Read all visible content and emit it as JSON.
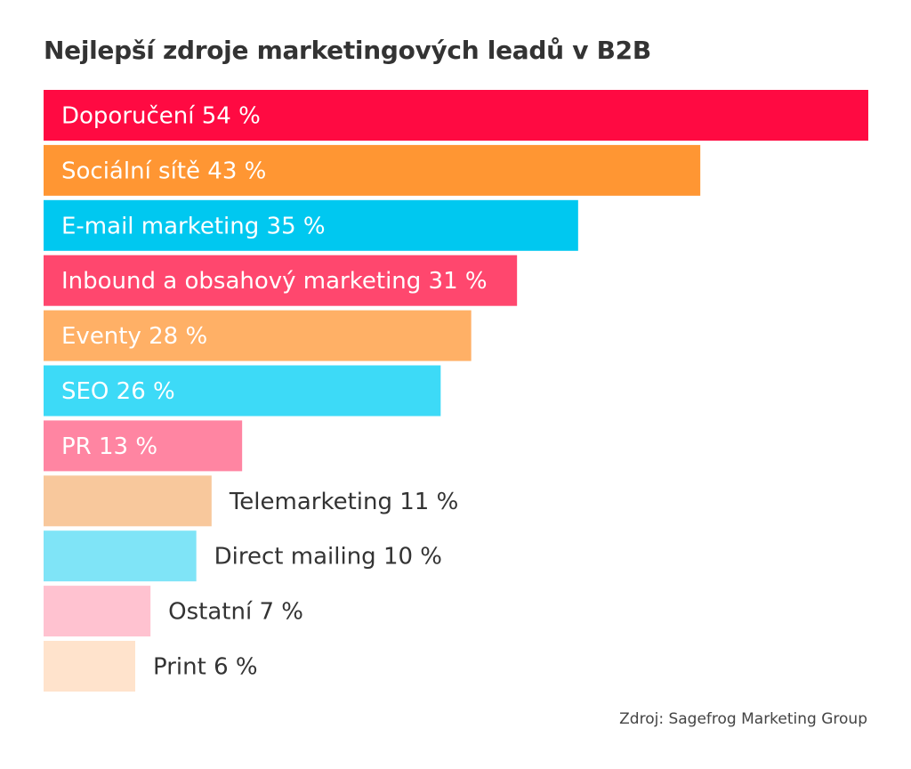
{
  "chart_data": {
    "type": "bar",
    "orientation": "horizontal",
    "title": "Nejlepší zdroje marketingových leadů v B2B",
    "categories": [
      "Doporučení",
      "Sociální sítě",
      "E-mail marketing",
      "Inbound a obsahový marketing",
      "Eventy",
      "SEO",
      "PR",
      "Telemarketing",
      "Direct mailing",
      "Ostatní",
      "Print"
    ],
    "values": [
      54,
      43,
      35,
      31,
      28,
      26,
      13,
      11,
      10,
      7,
      6
    ],
    "unit": "%",
    "colors": [
      "#ff0a42",
      "#ff9633",
      "#00c8f0",
      "#ff476e",
      "#ffb066",
      "#3ddaf7",
      "#ff85a2",
      "#f8c89c",
      "#7fe4f7",
      "#ffc2d0",
      "#ffe3cc"
    ],
    "xlim": [
      0,
      54
    ],
    "grid": false,
    "source": "Zdroj: Sagefrog Marketing Group"
  }
}
